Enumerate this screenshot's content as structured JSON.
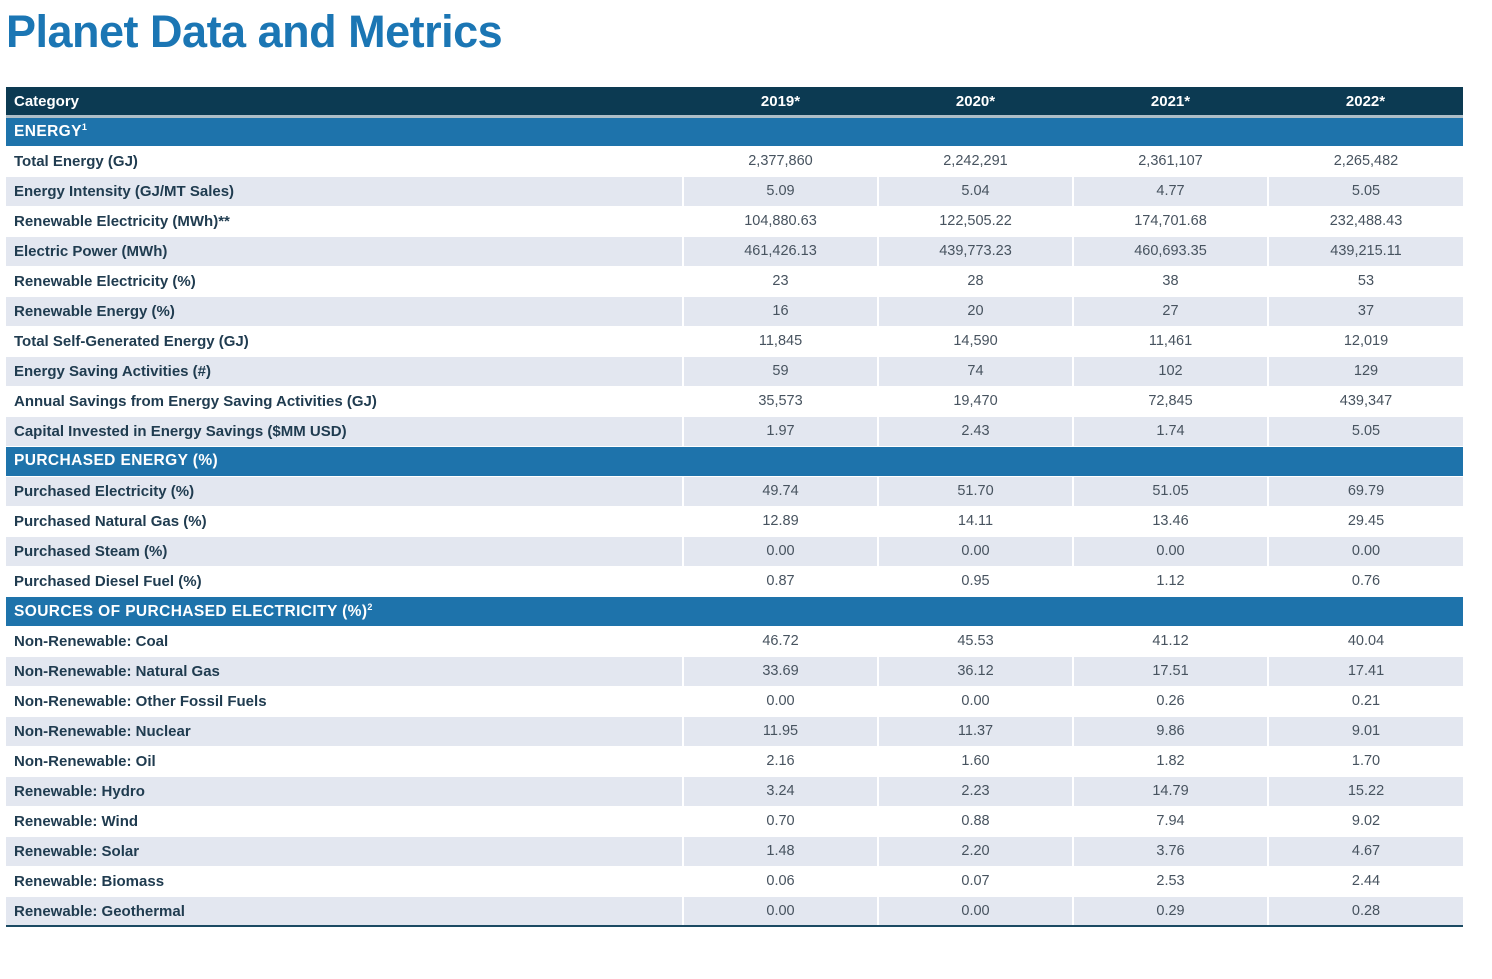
{
  "page_title": "Planet Data and Metrics",
  "colors": {
    "title_blue": "#1B76B4",
    "header_navy": "#0C3A52",
    "section_band_blue": "#1E73AB",
    "row_stripe": "#E3E7F0",
    "label_text": "#203C50",
    "value_text": "#47535F"
  },
  "table": {
    "columns": [
      "Category",
      "2019*",
      "2020*",
      "2021*",
      "2022*"
    ],
    "sections": [
      {
        "header": "ENERGY",
        "sup": "1",
        "zebra_start": "white",
        "rows": [
          {
            "label": "Total Energy (GJ)",
            "values": [
              "2,377,860",
              "2,242,291",
              "2,361,107",
              "2,265,482"
            ]
          },
          {
            "label": "Energy Intensity (GJ/MT Sales)",
            "values": [
              "5.09",
              "5.04",
              "4.77",
              "5.05"
            ]
          },
          {
            "label": "Renewable Electricity (MWh)**",
            "values": [
              "104,880.63",
              "122,505.22",
              "174,701.68",
              "232,488.43"
            ]
          },
          {
            "label": "Electric Power (MWh)",
            "values": [
              "461,426.13",
              "439,773.23",
              "460,693.35",
              "439,215.11"
            ]
          },
          {
            "label": "Renewable Electricity (%)",
            "values": [
              "23",
              "28",
              "38",
              "53"
            ]
          },
          {
            "label": "Renewable Energy (%)",
            "values": [
              "16",
              "20",
              "27",
              "37"
            ]
          },
          {
            "label": "Total Self-Generated Energy (GJ)",
            "values": [
              "11,845",
              "14,590",
              "11,461",
              "12,019"
            ]
          },
          {
            "label": "Energy Saving Activities (#)",
            "values": [
              "59",
              "74",
              "102",
              "129"
            ]
          },
          {
            "label": "Annual Savings from Energy Saving Activities (GJ)",
            "values": [
              "35,573",
              "19,470",
              "72,845",
              "439,347"
            ]
          },
          {
            "label": "Capital Invested in Energy Savings ($MM USD)",
            "values": [
              "1.97",
              "2.43",
              "1.74",
              "5.05"
            ]
          }
        ]
      },
      {
        "header": "PURCHASED ENERGY (%)",
        "sup": "",
        "zebra_start": "shaded",
        "rows": [
          {
            "label": "Purchased Electricity (%)",
            "values": [
              "49.74",
              "51.70",
              "51.05",
              "69.79"
            ]
          },
          {
            "label": "Purchased Natural Gas (%)",
            "values": [
              "12.89",
              "14.11",
              "13.46",
              "29.45"
            ]
          },
          {
            "label": "Purchased Steam (%)",
            "values": [
              "0.00",
              "0.00",
              "0.00",
              "0.00"
            ]
          },
          {
            "label": "Purchased Diesel Fuel (%)",
            "values": [
              "0.87",
              "0.95",
              "1.12",
              "0.76"
            ]
          }
        ]
      },
      {
        "header": "SOURCES OF PURCHASED ELECTRICITY (%)",
        "sup": "2",
        "zebra_start": "white",
        "rows": [
          {
            "label": "Non-Renewable: Coal",
            "values": [
              "46.72",
              "45.53",
              "41.12",
              "40.04"
            ]
          },
          {
            "label": "Non-Renewable: Natural Gas",
            "values": [
              "33.69",
              "36.12",
              "17.51",
              "17.41"
            ]
          },
          {
            "label": "Non-Renewable: Other Fossil Fuels",
            "values": [
              "0.00",
              "0.00",
              "0.26",
              "0.21"
            ]
          },
          {
            "label": "Non-Renewable: Nuclear",
            "values": [
              "11.95",
              "11.37",
              "9.86",
              "9.01"
            ]
          },
          {
            "label": "Non-Renewable: Oil",
            "values": [
              "2.16",
              "1.60",
              "1.82",
              "1.70"
            ]
          },
          {
            "label": "Renewable: Hydro",
            "values": [
              "3.24",
              "2.23",
              "14.79",
              "15.22"
            ]
          },
          {
            "label": "Renewable: Wind",
            "values": [
              "0.70",
              "0.88",
              "7.94",
              "9.02"
            ]
          },
          {
            "label": "Renewable: Solar",
            "values": [
              "1.48",
              "2.20",
              "3.76",
              "4.67"
            ]
          },
          {
            "label": "Renewable: Biomass",
            "values": [
              "0.06",
              "0.07",
              "2.53",
              "2.44"
            ]
          },
          {
            "label": "Renewable: Geothermal",
            "values": [
              "0.00",
              "0.00",
              "0.29",
              "0.28"
            ]
          }
        ]
      }
    ]
  }
}
